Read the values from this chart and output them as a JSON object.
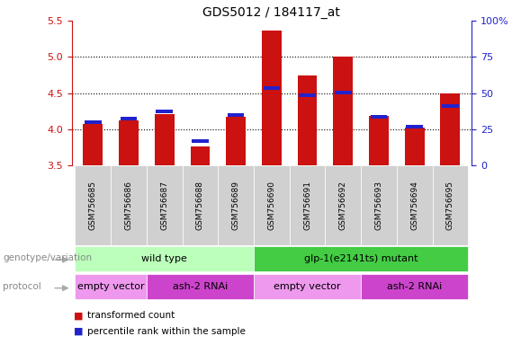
{
  "title": "GDS5012 / 184117_at",
  "samples": [
    "GSM756685",
    "GSM756686",
    "GSM756687",
    "GSM756688",
    "GSM756689",
    "GSM756690",
    "GSM756691",
    "GSM756692",
    "GSM756693",
    "GSM756694",
    "GSM756695"
  ],
  "red_values": [
    4.08,
    4.13,
    4.21,
    3.76,
    4.17,
    5.37,
    4.75,
    5.0,
    4.18,
    4.02,
    4.5
  ],
  "blue_values": [
    4.1,
    4.15,
    4.25,
    3.84,
    4.2,
    4.57,
    4.47,
    4.51,
    4.175,
    4.04,
    4.32
  ],
  "ylim_left": [
    3.5,
    5.5
  ],
  "ylim_right": [
    0,
    100
  ],
  "yticks_left": [
    3.5,
    4.0,
    4.5,
    5.0,
    5.5
  ],
  "yticks_right": [
    0,
    25,
    50,
    75,
    100
  ],
  "ytick_labels_right": [
    "0",
    "25",
    "50",
    "75",
    "100%"
  ],
  "bar_color_red": "#cc1111",
  "bar_color_blue": "#2222cc",
  "left_axis_color": "#cc1111",
  "right_axis_color": "#2222cc",
  "genotype_groups": [
    {
      "label": "wild type",
      "start": 0,
      "end": 4,
      "color": "#bbffbb"
    },
    {
      "label": "glp-1(e2141ts) mutant",
      "start": 5,
      "end": 10,
      "color": "#44cc44"
    }
  ],
  "protocol_groups": [
    {
      "label": "empty vector",
      "start": 0,
      "end": 1,
      "color": "#ee99ee"
    },
    {
      "label": "ash-2 RNAi",
      "start": 2,
      "end": 4,
      "color": "#cc44cc"
    },
    {
      "label": "empty vector",
      "start": 5,
      "end": 7,
      "color": "#ee99ee"
    },
    {
      "label": "ash-2 RNAi",
      "start": 8,
      "end": 10,
      "color": "#cc44cc"
    }
  ],
  "legend_red_label": "transformed count",
  "legend_blue_label": "percentile rank within the sample",
  "genotype_label": "genotype/variation",
  "protocol_label": "protocol",
  "bar_width": 0.55,
  "blue_bar_height": 0.055,
  "grid_yticks": [
    4.0,
    4.5,
    5.0
  ],
  "xtick_bg": "#d0d0d0",
  "label_color": "#888888",
  "arrow_color": "#aaaaaa"
}
